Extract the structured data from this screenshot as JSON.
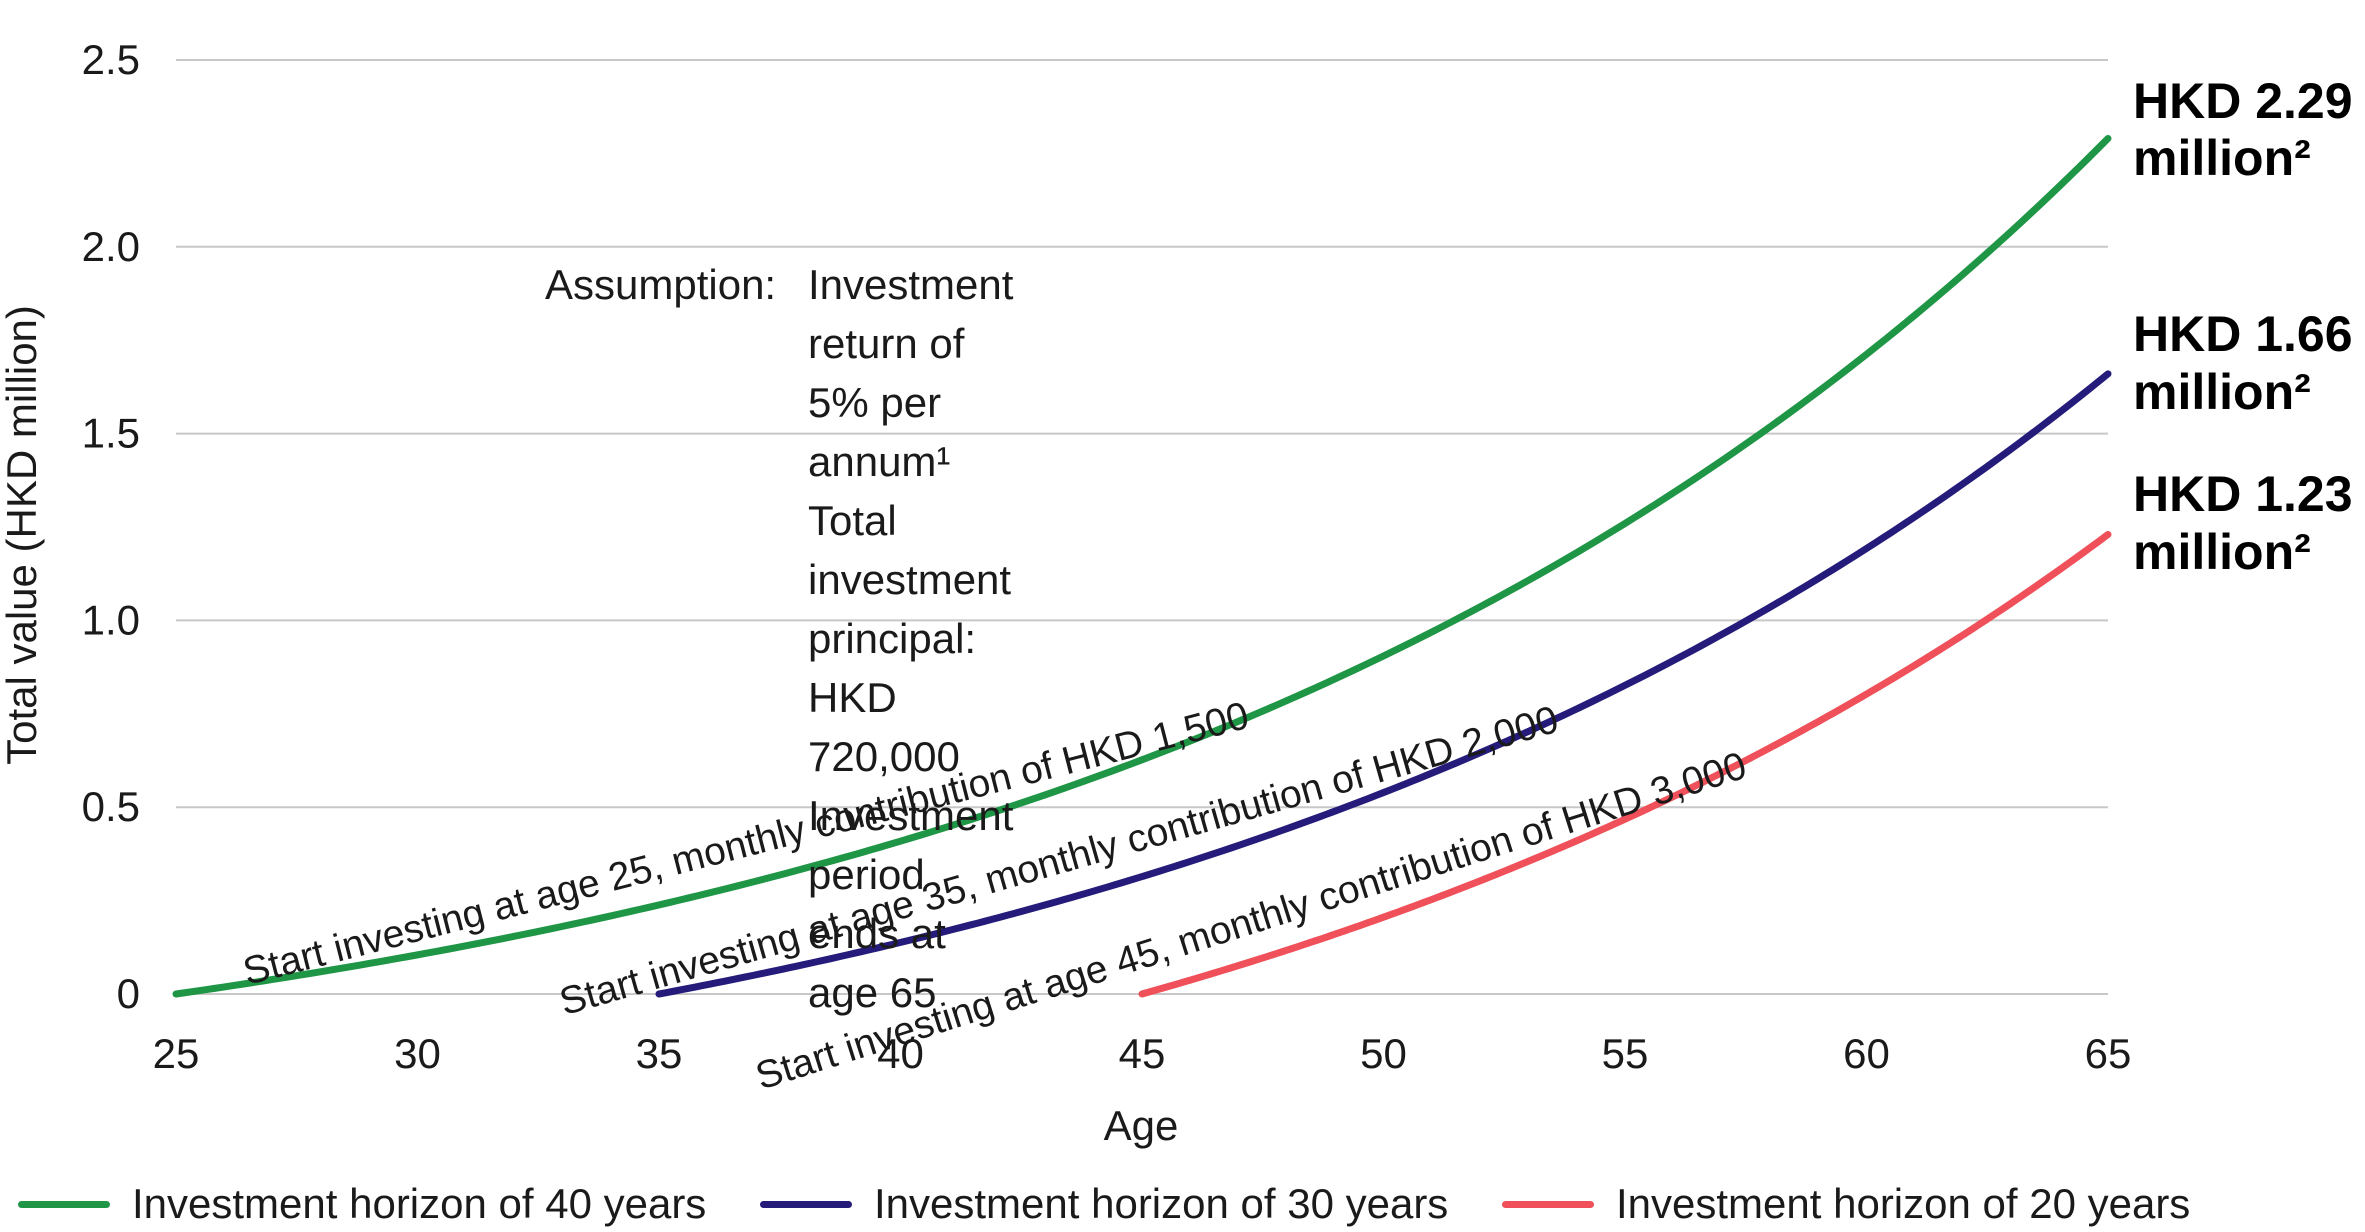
{
  "chart_data": {
    "type": "line",
    "xlabel": "Age",
    "ylabel": "Total value (HKD million)",
    "xlim": [
      25,
      65
    ],
    "ylim": [
      0,
      2.5
    ],
    "x_ticks": [
      "25",
      "30",
      "35",
      "40",
      "45",
      "50",
      "55",
      "60",
      "65"
    ],
    "y_ticks": [
      "0",
      "0.5",
      "1.0",
      "1.5",
      "2.0",
      "2.5"
    ],
    "grid": true,
    "legend_position": "bottom",
    "annual_return": 0.05,
    "series": [
      {
        "name": "Investment horizon of 40 years",
        "color": "#1e9645",
        "start_age": 25,
        "monthly_contribution": 1500,
        "curve_label": "Start investing at age 25, monthly contribution of HKD 1,500",
        "end_value": 2.29,
        "end_label_line1": "HKD 2.29",
        "end_label_line2": "million²"
      },
      {
        "name": "Investment horizon of 30 years",
        "color": "#241b7a",
        "start_age": 35,
        "monthly_contribution": 2000,
        "curve_label": "Start investing at age 35, monthly contribution of HKD 2,000",
        "end_value": 1.66,
        "end_label_line1": "HKD 1.66",
        "end_label_line2": "million²"
      },
      {
        "name": "Investment horizon of 20 years",
        "color": "#ef5059",
        "start_age": 45,
        "monthly_contribution": 3000,
        "curve_label": "Start investing at age 45, monthly contribution of HKD 3,000",
        "end_value": 1.23,
        "end_label_line1": "HKD 1.23",
        "end_label_line2": "million²"
      }
    ],
    "annotation": {
      "label": "Assumption:",
      "lines": [
        "Investment return of 5% per annum¹",
        "Total investment principal: HKD 720,000",
        "Investment period ends at age 65"
      ]
    }
  }
}
